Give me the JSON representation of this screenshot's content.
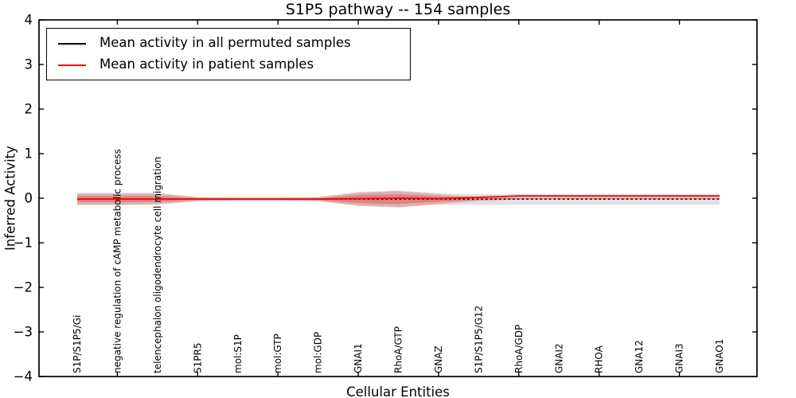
{
  "title": "S1P5 pathway -- 154 samples",
  "legend": {
    "items": [
      {
        "label": "Mean activity in all permuted samples",
        "color": "#000000"
      },
      {
        "label": "Mean activity in patient samples",
        "color": "#ff0000"
      }
    ]
  },
  "chart_data": {
    "type": "line",
    "title": "S1P5 pathway -- 154 samples",
    "xlabel": "Cellular Entities",
    "ylabel": "Inferred Activity",
    "ylim": [
      -4,
      4
    ],
    "grid": false,
    "legend_position": "upper left",
    "x_tick_label_rotation": 90,
    "ytick_values": [
      -4,
      -3,
      -2,
      -1,
      0,
      1,
      2,
      3,
      4
    ],
    "ytick_labels": [
      "−4",
      "−3",
      "−2",
      "−1",
      "0",
      "1",
      "2",
      "3",
      "4"
    ],
    "categories": [
      "S1P/S1P5/Gi",
      "negative regulation of cAMP metabolic process",
      "telencephalon oligodendrocyte cell migration",
      "S1PR5",
      "mol:S1P",
      "mol:GTP",
      "mol:GDP",
      "GNAI1",
      "RhoA/GTP",
      "GNAZ",
      "S1P/S1P5/G12",
      "RhoA/GDP",
      "GNAI2",
      "RHOA",
      "GNA12",
      "GNAI3",
      "GNAO1"
    ],
    "series": [
      {
        "name": "Mean activity in all permuted samples",
        "color": "#000000",
        "style": "dashed",
        "values": [
          -0.02,
          -0.02,
          -0.02,
          -0.02,
          -0.02,
          -0.02,
          -0.02,
          -0.02,
          -0.02,
          -0.02,
          -0.02,
          -0.02,
          -0.02,
          -0.02,
          -0.02,
          -0.02,
          -0.02
        ]
      },
      {
        "name": "Mean activity in patient samples",
        "color": "#ff0000",
        "style": "solid",
        "values": [
          -0.02,
          -0.02,
          -0.02,
          -0.02,
          -0.02,
          -0.02,
          -0.02,
          -0.01,
          0.0,
          -0.01,
          0.02,
          0.05,
          0.05,
          0.05,
          0.05,
          0.05,
          0.05
        ]
      }
    ],
    "bands": [
      {
        "name": "permuted-samples-spread",
        "color": "#999999",
        "opacity": 0.3,
        "upper": [
          0.12,
          0.12,
          0.12,
          0.03,
          0.03,
          0.03,
          0.03,
          0.14,
          0.17,
          0.11,
          0.09,
          0.09,
          0.09,
          0.09,
          0.09,
          0.09,
          0.09
        ],
        "lower": [
          -0.16,
          -0.16,
          -0.15,
          -0.07,
          -0.06,
          -0.06,
          -0.07,
          -0.18,
          -0.21,
          -0.14,
          -0.15,
          -0.15,
          -0.15,
          -0.15,
          -0.15,
          -0.15,
          -0.15
        ]
      },
      {
        "name": "patient-samples-spread-outer",
        "color": "#e03131",
        "opacity": 0.28,
        "upper": [
          0.1,
          0.1,
          0.1,
          0.02,
          0.01,
          0.01,
          0.02,
          0.12,
          0.16,
          0.09,
          0.02,
          0.01,
          0.01,
          0.01,
          0.01,
          0.01,
          0.01
        ],
        "lower": [
          -0.14,
          -0.14,
          -0.13,
          -0.06,
          -0.05,
          -0.05,
          -0.06,
          -0.16,
          -0.2,
          -0.13,
          -0.06,
          -0.03,
          -0.03,
          -0.03,
          -0.03,
          -0.03,
          -0.03
        ]
      },
      {
        "name": "patient-samples-spread-inner",
        "color": "#d32020",
        "opacity": 0.3,
        "upper": [
          0.05,
          0.05,
          0.05,
          0.0,
          0.0,
          0.0,
          0.0,
          0.07,
          0.09,
          0.04,
          0.01,
          0.0,
          0.0,
          0.0,
          0.0,
          0.0,
          0.0
        ],
        "lower": [
          -0.09,
          -0.09,
          -0.08,
          -0.04,
          -0.03,
          -0.03,
          -0.04,
          -0.11,
          -0.13,
          -0.08,
          -0.04,
          -0.02,
          -0.02,
          -0.02,
          -0.02,
          -0.02,
          -0.02
        ]
      }
    ]
  }
}
